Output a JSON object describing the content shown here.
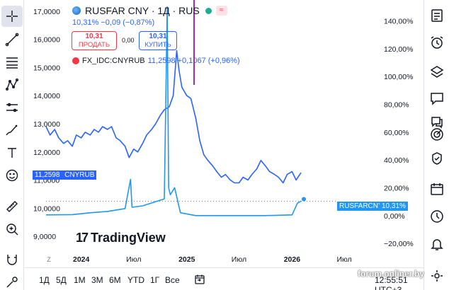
{
  "legend": {
    "title": "RUSFAR CNY · 1Д · RUS",
    "change": "10,31%  −0,09  (−0,87%)",
    "flag": "≈",
    "sell_price": "10,31",
    "sell_label": "ПРОДАТЬ",
    "spread": "0,00",
    "buy_price": "10,31",
    "buy_label": "КУПИТЬ",
    "compare_symbol": "FX_IDC:CNYRUB",
    "compare_value": "11,2598  +0,1067  (+0,96%)"
  },
  "price_tags": {
    "left_value": "11,2598",
    "left_symbol": "CNYRUB",
    "right_symbol": "RUSFARCNY",
    "right_value": "10,31%"
  },
  "logo": {
    "text": "TradingView"
  },
  "time_axis": {
    "tz_label": "Z"
  },
  "bottom": {
    "ranges": [
      "1Д",
      "5Д",
      "1М",
      "3М",
      "6М",
      "YTD",
      "1Г",
      "Все"
    ],
    "clock": "12:55:51 UTC+3"
  },
  "watermark": "forum.onliner.by",
  "colors": {
    "cnyrub": "#2962ff",
    "rusfar": "#2196f3",
    "spike": "#9c27b0",
    "ask": "#2962ff",
    "bid": "#f23645"
  },
  "left_toolbar_icons": [
    "crosshair-icon",
    "trendline-icon",
    "fib-icon",
    "pattern-icon",
    "prediction-icon",
    "brush-icon",
    "text-icon",
    "emoji-icon",
    "ruler-icon",
    "zoom-in-icon",
    "magnet-icon",
    "lock-draw-icon"
  ],
  "right_toolbar_icons": [
    "watchlist-icon",
    "alarm-icon",
    "layers-icon",
    "chat-icon",
    "ideas-icon",
    "target-icon",
    "calculator-icon",
    "calendar-icon",
    "hotlist-icon",
    "notification-icon"
  ],
  "chart_data": {
    "type": "line",
    "x_tick_labels": [
      "2024",
      "Июл",
      "2025",
      "Июл",
      "2026",
      "Июл"
    ],
    "x": [
      "2024-01",
      "2024-07",
      "2025-01",
      "2025-07",
      "2026-01",
      "2026-07"
    ],
    "left_axis": {
      "ticks": [
        "17,0000",
        "16,0000",
        "15,0000",
        "14,0000",
        "13,0000",
        "12,0000",
        "11,0000",
        "10,0000",
        "9,0000"
      ],
      "range": [
        8.6,
        17.4
      ]
    },
    "right_axis": {
      "ticks": [
        "140,00%",
        "120,00%",
        "100,00%",
        "80,00%",
        "60,00%",
        "40,00%",
        "20,00%",
        "0,00%",
        "−20,00%"
      ],
      "range": [
        -23,
        155
      ]
    },
    "series": [
      {
        "name": "CNYRUB",
        "axis": "left",
        "points": [
          [
            "2023-09-01",
            12.9
          ],
          [
            "2023-09-15",
            12.6
          ],
          [
            "2023-10-01",
            12.8
          ],
          [
            "2023-10-15",
            12.5
          ],
          [
            "2023-11-01",
            12.3
          ],
          [
            "2023-11-15",
            12.4
          ],
          [
            "2023-12-01",
            12.2
          ],
          [
            "2023-12-15",
            12.6
          ],
          [
            "2024-01-01",
            12.5
          ],
          [
            "2024-01-15",
            12.7
          ],
          [
            "2024-02-01",
            12.6
          ],
          [
            "2024-02-15",
            12.8
          ],
          [
            "2024-03-01",
            12.7
          ],
          [
            "2024-03-15",
            12.9
          ],
          [
            "2024-04-01",
            12.8
          ],
          [
            "2024-04-15",
            12.9
          ],
          [
            "2024-05-01",
            12.5
          ],
          [
            "2024-05-15",
            12.4
          ],
          [
            "2024-06-01",
            12.2
          ],
          [
            "2024-06-15",
            11.8
          ],
          [
            "2024-07-01",
            12.1
          ],
          [
            "2024-07-15",
            12.0
          ],
          [
            "2024-08-01",
            12.3
          ],
          [
            "2024-08-15",
            12.6
          ],
          [
            "2024-09-01",
            12.8
          ],
          [
            "2024-09-15",
            13.0
          ],
          [
            "2024-10-01",
            13.3
          ],
          [
            "2024-10-15",
            13.5
          ],
          [
            "2024-11-01",
            13.6
          ],
          [
            "2024-11-15",
            14.0
          ],
          [
            "2024-11-27",
            15.6
          ],
          [
            "2024-12-05",
            14.9
          ],
          [
            "2024-12-15",
            14.3
          ],
          [
            "2025-01-01",
            14.0
          ],
          [
            "2025-01-15",
            13.9
          ],
          [
            "2025-02-01",
            13.2
          ],
          [
            "2025-02-15",
            12.4
          ],
          [
            "2025-03-01",
            11.9
          ],
          [
            "2025-03-15",
            11.7
          ],
          [
            "2025-04-01",
            11.5
          ],
          [
            "2025-04-15",
            11.3
          ],
          [
            "2025-05-01",
            11.1
          ],
          [
            "2025-05-15",
            11.2
          ],
          [
            "2025-06-01",
            11.0
          ],
          [
            "2025-06-15",
            10.9
          ],
          [
            "2025-07-01",
            10.9
          ],
          [
            "2025-07-15",
            11.1
          ],
          [
            "2025-08-01",
            11.0
          ],
          [
            "2025-08-15",
            11.2
          ],
          [
            "2025-09-01",
            11.4
          ],
          [
            "2025-09-15",
            11.7
          ],
          [
            "2025-10-01",
            11.5
          ],
          [
            "2025-10-15",
            11.3
          ],
          [
            "2025-11-01",
            11.2
          ],
          [
            "2025-11-15",
            11.1
          ],
          [
            "2025-12-01",
            10.9
          ],
          [
            "2025-12-15",
            11.2
          ],
          [
            "2026-01-01",
            11.3
          ],
          [
            "2026-01-15",
            11.0
          ],
          [
            "2026-02-01",
            11.26
          ]
        ]
      },
      {
        "name": "RUSFARCNY",
        "axis": "right",
        "points": [
          [
            "2023-09-01",
            0.5
          ],
          [
            "2023-12-01",
            0.7
          ],
          [
            "2024-02-01",
            2.0
          ],
          [
            "2024-04-01",
            3.0
          ],
          [
            "2024-06-01",
            5.0
          ],
          [
            "2024-06-20",
            26.0
          ],
          [
            "2024-06-25",
            6.0
          ],
          [
            "2024-08-01",
            7.0
          ],
          [
            "2024-09-15",
            10.0
          ],
          [
            "2024-10-15",
            12.0
          ],
          [
            "2024-10-25",
            150.0
          ],
          [
            "2024-10-30",
            20.0
          ],
          [
            "2024-11-05",
            15.0
          ],
          [
            "2024-11-20",
            20.0
          ],
          [
            "2024-12-01",
            10.0
          ],
          [
            "2024-12-10",
            2.0
          ],
          [
            "2025-02-01",
            0.0
          ],
          [
            "2025-06-01",
            0.0
          ],
          [
            "2025-10-01",
            0.0
          ],
          [
            "2026-01-01",
            0.5
          ],
          [
            "2026-01-20",
            9.0
          ],
          [
            "2026-02-01",
            10.31
          ]
        ]
      }
    ]
  }
}
